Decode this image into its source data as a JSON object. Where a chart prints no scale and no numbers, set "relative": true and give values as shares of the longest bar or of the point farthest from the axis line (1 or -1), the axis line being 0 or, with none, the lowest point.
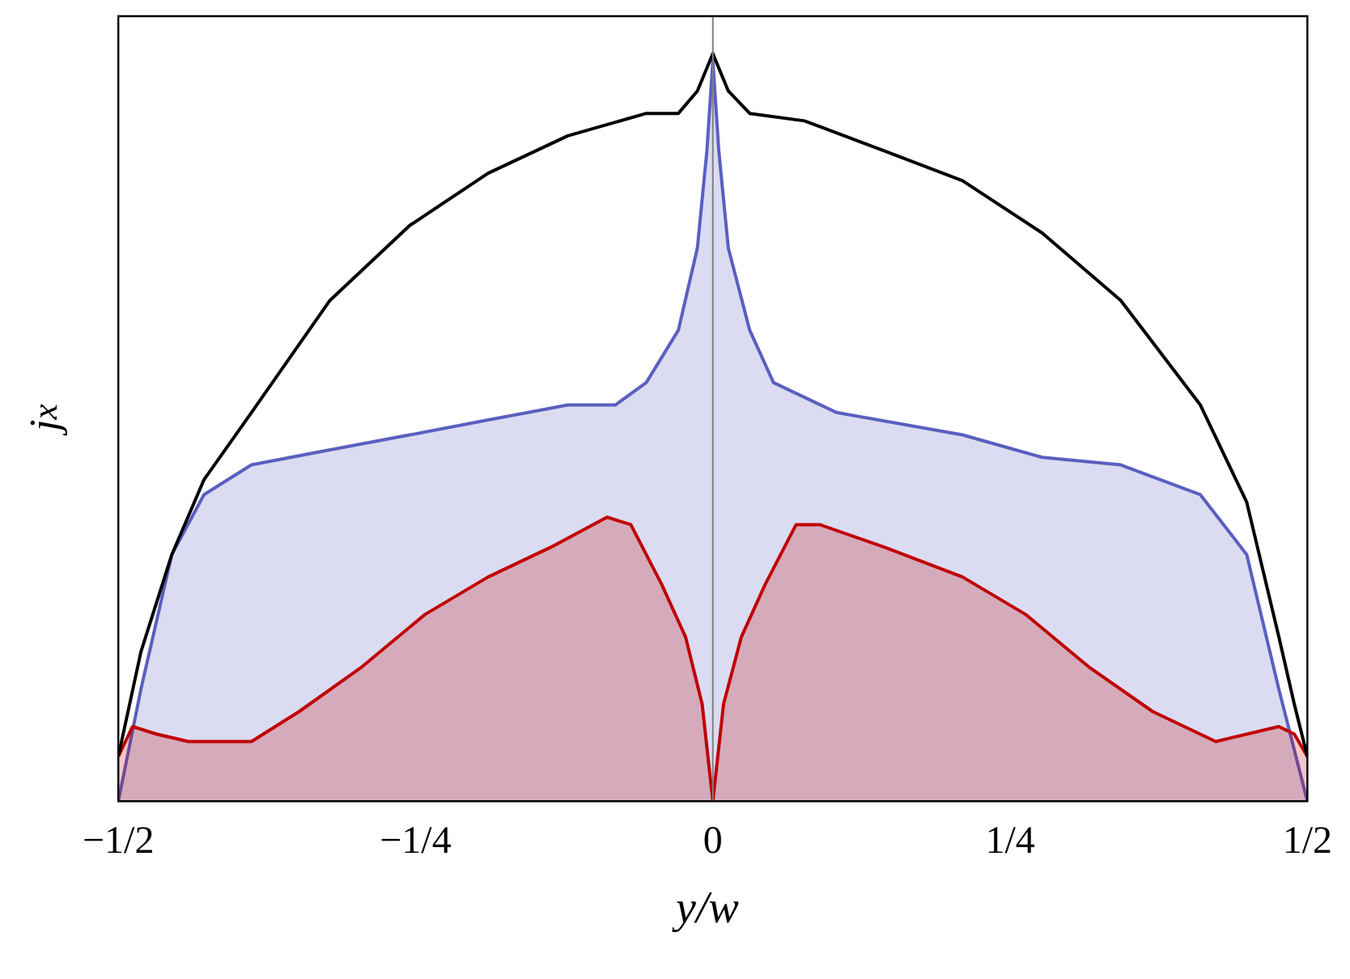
{
  "chart_data": {
    "type": "line",
    "relative": true,
    "xlabel": "y/w",
    "ylabel": "j$_{x}$",
    "xlim": [
      -0.5,
      0.5
    ],
    "xticks": [
      {
        "value": -0.5,
        "label": "−1/2"
      },
      {
        "value": -0.25,
        "label": "−1/4"
      },
      0,
      {
        "value": 0.25,
        "label": "1/4"
      },
      {
        "value": 0.5,
        "label": "1/2"
      }
    ],
    "tick_labels": "x",
    "grid": false,
    "legend": false,
    "ref_lines": [
      {
        "axis": "x",
        "value": 0,
        "color": "#808080"
      }
    ],
    "series": [
      {
        "type": "area",
        "color": "#5a5fc0",
        "x": [
          -0.5,
          -0.481,
          -0.455,
          -0.428,
          -0.388,
          -0.322,
          -0.255,
          -0.189,
          -0.122,
          -0.082,
          -0.056,
          -0.029,
          -0.013,
          -0.005,
          0,
          0.005,
          0.013,
          0.031,
          0.051,
          0.104,
          0.21,
          0.277,
          0.343,
          0.41,
          0.449,
          0.476,
          0.5
        ],
        "values": [
          0,
          0.15,
          0.33,
          0.41,
          0.45,
          0.47,
          0.49,
          0.51,
          0.53,
          0.53,
          0.56,
          0.63,
          0.74,
          0.87,
          0.99,
          0.87,
          0.74,
          0.63,
          0.56,
          0.52,
          0.49,
          0.46,
          0.45,
          0.41,
          0.33,
          0.15,
          0
        ]
      },
      {
        "type": "area",
        "color": "#c00000",
        "x": [
          -0.5,
          -0.488,
          -0.468,
          -0.441,
          -0.388,
          -0.348,
          -0.295,
          -0.242,
          -0.189,
          -0.136,
          -0.089,
          -0.069,
          -0.043,
          -0.023,
          -0.009,
          0,
          0.009,
          0.024,
          0.044,
          0.07,
          0.09,
          0.144,
          0.21,
          0.263,
          0.316,
          0.37,
          0.423,
          0.476,
          0.489,
          0.5
        ],
        "values": [
          0.06,
          0.1,
          0.09,
          0.08,
          0.08,
          0.12,
          0.18,
          0.25,
          0.3,
          0.34,
          0.38,
          0.37,
          0.29,
          0.22,
          0.13,
          0,
          0.13,
          0.22,
          0.29,
          0.37,
          0.37,
          0.34,
          0.3,
          0.25,
          0.18,
          0.12,
          0.08,
          0.1,
          0.09,
          0.06
        ]
      },
      {
        "type": "line",
        "color": "#000000",
        "x": [
          -0.5,
          -0.481,
          -0.455,
          -0.428,
          -0.388,
          -0.322,
          -0.255,
          -0.189,
          -0.122,
          -0.056,
          -0.029,
          -0.013,
          0,
          0.013,
          0.031,
          0.077,
          0.144,
          0.21,
          0.277,
          0.343,
          0.41,
          0.449,
          0.476,
          0.489,
          0.5
        ],
        "values": [
          0.06,
          0.2,
          0.33,
          0.43,
          0.52,
          0.67,
          0.77,
          0.84,
          0.89,
          0.92,
          0.92,
          0.95,
          1,
          0.95,
          0.92,
          0.91,
          0.87,
          0.83,
          0.76,
          0.67,
          0.53,
          0.4,
          0.22,
          0.13,
          0.06
        ]
      }
    ]
  }
}
